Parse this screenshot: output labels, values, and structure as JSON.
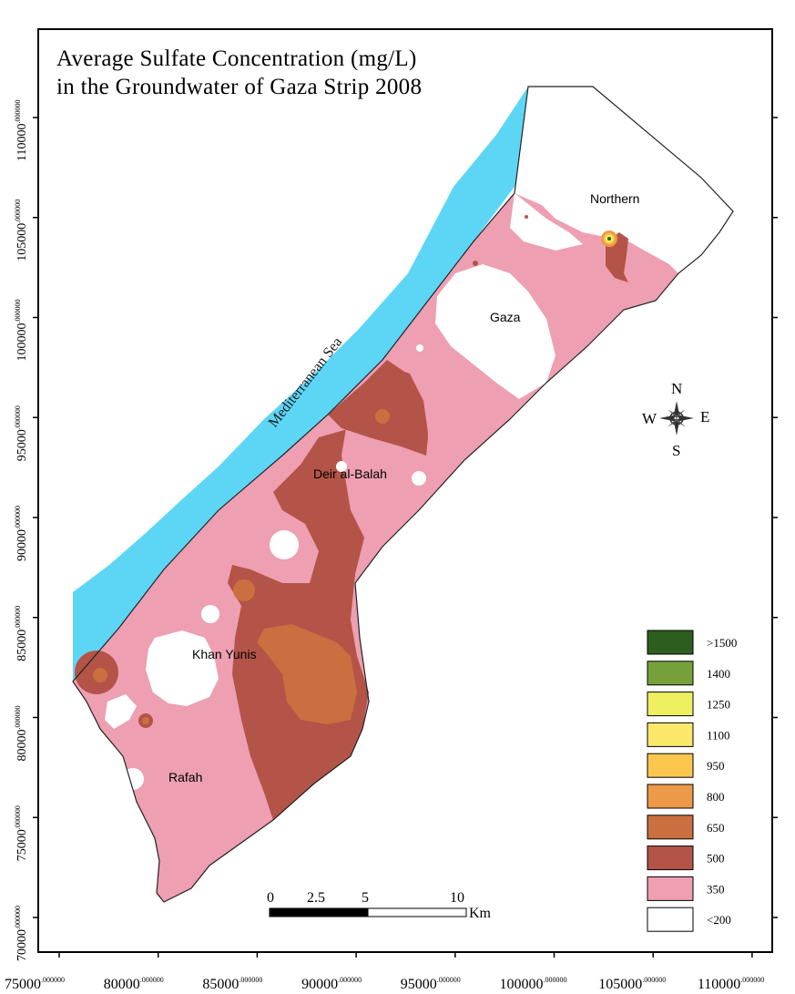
{
  "title": {
    "line1": "Average Sulfate Concentration (mg/L)",
    "line2": "in the Groundwater of Gaza Strip 2008"
  },
  "sea_label": "Mediterranean Sea",
  "districts": [
    {
      "name": "Northern"
    },
    {
      "name": "Gaza"
    },
    {
      "name": "Deir al-Balah"
    },
    {
      "name": "Khan Yunis"
    },
    {
      "name": "Rafah"
    }
  ],
  "compass": {
    "n": "N",
    "s": "S",
    "e": "E",
    "w": "W"
  },
  "scale_bar": {
    "ticks": [
      "0",
      "2.5",
      "5",
      "10"
    ],
    "unit": "Km"
  },
  "y_axis": {
    "ticks": [
      {
        "value": "110000",
        "exp": ".000000"
      },
      {
        "value": "105000",
        "exp": ".000000"
      },
      {
        "value": "100000",
        "exp": ".000000"
      },
      {
        "value": "95000",
        "exp": ".000000"
      },
      {
        "value": "90000",
        "exp": ".000000"
      },
      {
        "value": "85000",
        "exp": ".000000"
      },
      {
        "value": "80000",
        "exp": ".000000"
      },
      {
        "value": "75000",
        "exp": ".000000"
      },
      {
        "value": "70000",
        "exp": ".000000"
      }
    ]
  },
  "x_axis": {
    "ticks": [
      {
        "value": "75000",
        "exp": ".000000"
      },
      {
        "value": "80000",
        "exp": ".000000"
      },
      {
        "value": "85000",
        "exp": ".000000"
      },
      {
        "value": "90000",
        "exp": ".000000"
      },
      {
        "value": "95000",
        "exp": ".000000"
      },
      {
        "value": "100000",
        "exp": ".000000"
      },
      {
        "value": "105000",
        "exp": ".000000"
      },
      {
        "value": "110000",
        "exp": ".000000"
      }
    ]
  },
  "legend": [
    {
      "label": ">1500",
      "color": "#2e5e1e"
    },
    {
      "label": "1400",
      "color": "#76a03a"
    },
    {
      "label": "1250",
      "color": "#eef060"
    },
    {
      "label": "1100",
      "color": "#fbe86a"
    },
    {
      "label": "950",
      "color": "#fbc64e"
    },
    {
      "label": "800",
      "color": "#ec9a48"
    },
    {
      "label": "650",
      "color": "#c96f40"
    },
    {
      "label": "500",
      "color": "#b45448"
    },
    {
      "label": "350",
      "color": "#ee9fb2"
    },
    {
      "label": "<200",
      "color": "#ffffff"
    }
  ],
  "colors": {
    "sea": "#5dd6f6",
    "c350": "#ee9fb2",
    "c500": "#b45448",
    "c650": "#c96f40",
    "c800": "#ec9a48",
    "c950": "#fbc64e",
    "c1250": "#eef060",
    "c1400": "#76a03a",
    "c1500": "#2e5e1e"
  }
}
